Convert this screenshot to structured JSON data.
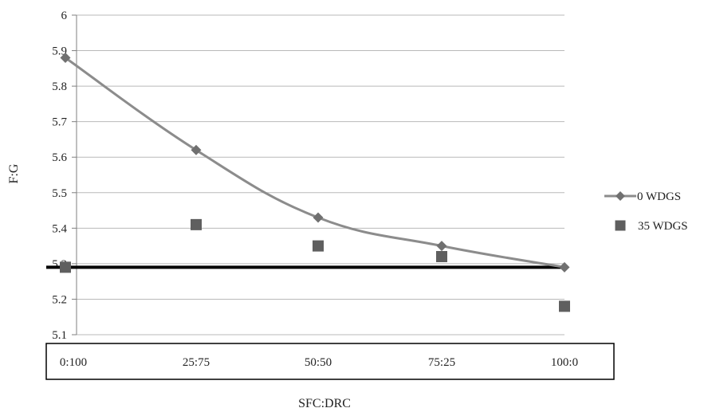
{
  "chart_data": {
    "type": "line",
    "xlabel": "SFC:DRC",
    "ylabel": "F:G",
    "categories": [
      "0:100",
      "25:75",
      "50:50",
      "75:25",
      "100:0"
    ],
    "ylim": [
      5.1,
      6
    ],
    "yticks": [
      "5.1",
      "5.2",
      "5.3",
      "5.4",
      "5.5",
      "5.6",
      "5.7",
      "5.8",
      "5.9",
      "6"
    ],
    "grid": true,
    "legend_position": "right",
    "reference_line": {
      "value": 5.29,
      "color": "#000000"
    },
    "series": [
      {
        "name": "0 WDGS",
        "values": [
          5.88,
          5.62,
          5.43,
          5.35,
          5.29
        ],
        "marker": "diamond",
        "line": true,
        "color": "#8c8c8c",
        "marker_color": "#707070"
      },
      {
        "name": "35 WDGS",
        "values": [
          5.29,
          5.41,
          5.35,
          5.32,
          5.18
        ],
        "marker": "square",
        "line": false,
        "color": "#5f5f5f"
      }
    ]
  }
}
